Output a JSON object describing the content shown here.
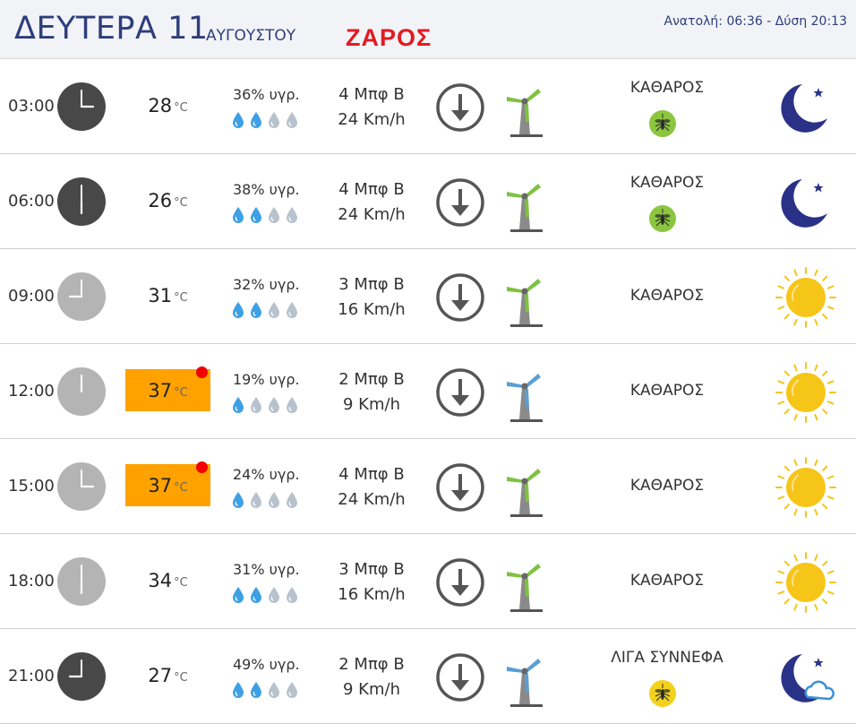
{
  "header": {
    "day_title": "ΔΕΥΤΕΡΑ 11",
    "month": "ΑΥΓΟΥΣΤΟΥ",
    "place": "ΖΑΡΟΣ",
    "sun_times": "Ανατολή: 06:36  - Δύση 20:13"
  },
  "colors": {
    "hot_bg": "#ffa200",
    "hot_dot": "#f20000",
    "title_blue": "#2e3e7c",
    "place_red": "#e11b22",
    "clock_night": "#484848",
    "clock_day": "#b4b4b4",
    "drop_filled": "#3ea0e4",
    "drop_empty": "#b8c2cc",
    "turbine_green": "#7fc241",
    "turbine_blue": "#5a9fd4",
    "mosquito_green": "#8cc63f",
    "mosquito_yellow": "#f2d21c",
    "sun": "#f5c518",
    "moon": "#2a3288"
  },
  "rows": [
    {
      "time": "03:00",
      "hour": 3,
      "clock": "night",
      "temp": "28",
      "unit": "°C",
      "hot": false,
      "humidity": "36% υγρ.",
      "drops_filled": 2,
      "bft": "4 Μπφ Β",
      "kmh": "24 Km/h",
      "turbine": "green",
      "condition": "ΚΑΘΑΡΟΣ",
      "mosquito": "green",
      "icon": "moon-icon"
    },
    {
      "time": "06:00",
      "hour": 6,
      "clock": "night",
      "temp": "26",
      "unit": "°C",
      "hot": false,
      "humidity": "38% υγρ.",
      "drops_filled": 2,
      "bft": "4 Μπφ Β",
      "kmh": "24 Km/h",
      "turbine": "green",
      "condition": "ΚΑΘΑΡΟΣ",
      "mosquito": "green",
      "icon": "moon-icon"
    },
    {
      "time": "09:00",
      "hour": 9,
      "clock": "day",
      "temp": "31",
      "unit": "°C",
      "hot": false,
      "humidity": "32% υγρ.",
      "drops_filled": 2,
      "bft": "3 Μπφ Β",
      "kmh": "16 Km/h",
      "turbine": "green",
      "condition": "ΚΑΘΑΡΟΣ",
      "mosquito": null,
      "icon": "sun-icon"
    },
    {
      "time": "12:00",
      "hour": 12,
      "clock": "day",
      "temp": "37",
      "unit": "°C",
      "hot": true,
      "humidity": "19% υγρ.",
      "drops_filled": 1,
      "bft": "2 Μπφ Β",
      "kmh": "9 Km/h",
      "turbine": "blue",
      "condition": "ΚΑΘΑΡΟΣ",
      "mosquito": null,
      "icon": "sun-icon"
    },
    {
      "time": "15:00",
      "hour": 15,
      "clock": "day",
      "temp": "37",
      "unit": "°C",
      "hot": true,
      "humidity": "24% υγρ.",
      "drops_filled": 1,
      "bft": "4 Μπφ Β",
      "kmh": "24 Km/h",
      "turbine": "green",
      "condition": "ΚΑΘΑΡΟΣ",
      "mosquito": null,
      "icon": "sun-icon"
    },
    {
      "time": "18:00",
      "hour": 18,
      "clock": "day",
      "temp": "34",
      "unit": "°C",
      "hot": false,
      "humidity": "31% υγρ.",
      "drops_filled": 2,
      "bft": "3 Μπφ Β",
      "kmh": "16 Km/h",
      "turbine": "green",
      "condition": "ΚΑΘΑΡΟΣ",
      "mosquito": null,
      "icon": "sun-icon"
    },
    {
      "time": "21:00",
      "hour": 21,
      "clock": "night",
      "temp": "27",
      "unit": "°C",
      "hot": false,
      "humidity": "49% υγρ.",
      "drops_filled": 2,
      "bft": "2 Μπφ Β",
      "kmh": "9 Km/h",
      "turbine": "blue",
      "condition": "ΛΙΓΑ ΣΥΝΝΕΦΑ",
      "mosquito": "yellow",
      "icon": "moon-cloud-icon"
    }
  ]
}
